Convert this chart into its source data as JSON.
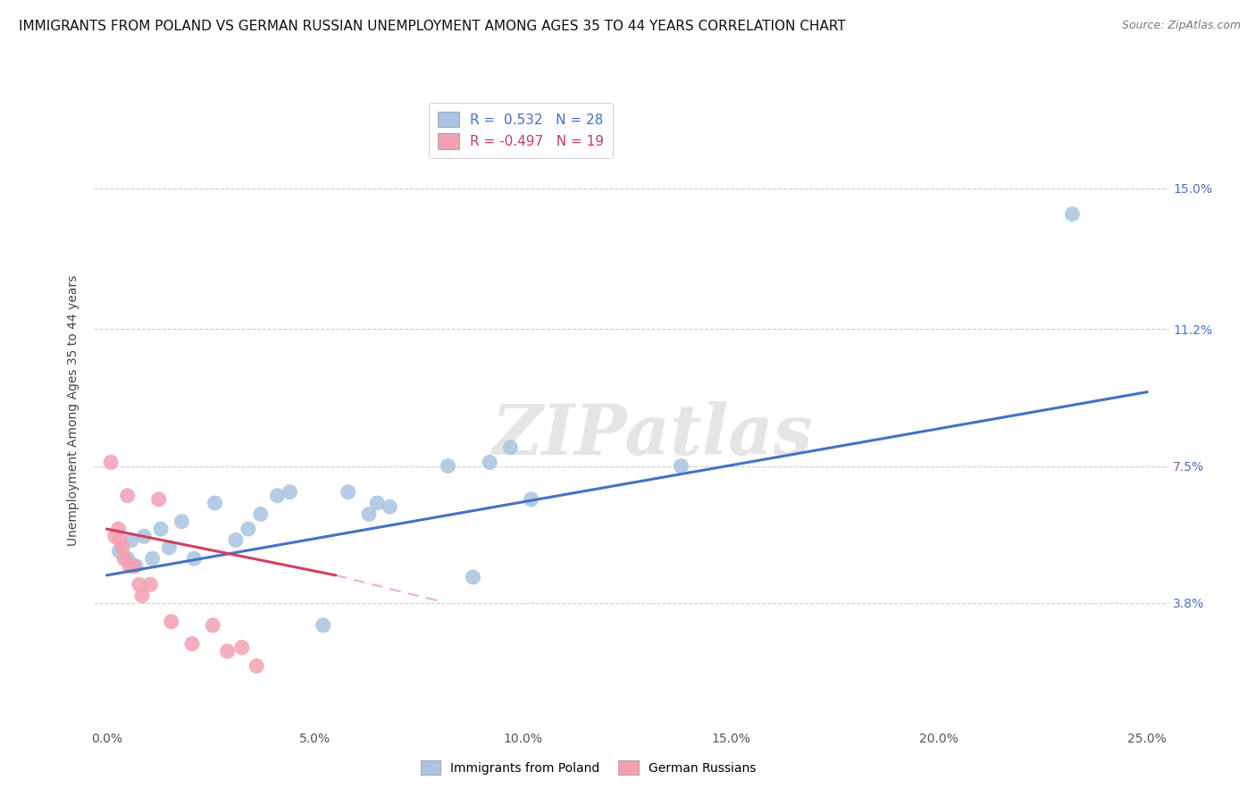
{
  "title": "IMMIGRANTS FROM POLAND VS GERMAN RUSSIAN UNEMPLOYMENT AMONG AGES 35 TO 44 YEARS CORRELATION CHART",
  "source": "Source: ZipAtlas.com",
  "ylabel": "Unemployment Among Ages 35 to 44 years",
  "x_tick_vals": [
    0.0,
    5.0,
    10.0,
    15.0,
    20.0,
    25.0
  ],
  "x_tick_labels": [
    "0.0%",
    "5.0%",
    "10.0%",
    "15.0%",
    "20.0%",
    "25.0%"
  ],
  "y_tick_vals_right": [
    3.8,
    7.5,
    11.2,
    15.0
  ],
  "y_tick_labels_right": [
    "3.8%",
    "7.5%",
    "11.2%",
    "15.0%"
  ],
  "xlim": [
    -0.3,
    25.5
  ],
  "ylim": [
    0.5,
    17.5
  ],
  "legend_r_labels": [
    "R =  0.532   N = 28",
    "R = -0.497   N = 19"
  ],
  "legend_bottom_labels": [
    "Immigrants from Poland",
    "German Russians"
  ],
  "poland_scatter": [
    [
      0.3,
      5.2
    ],
    [
      0.5,
      5.0
    ],
    [
      0.6,
      5.5
    ],
    [
      0.7,
      4.8
    ],
    [
      0.9,
      5.6
    ],
    [
      1.1,
      5.0
    ],
    [
      1.3,
      5.8
    ],
    [
      1.5,
      5.3
    ],
    [
      1.8,
      6.0
    ],
    [
      2.1,
      5.0
    ],
    [
      2.6,
      6.5
    ],
    [
      3.1,
      5.5
    ],
    [
      3.4,
      5.8
    ],
    [
      3.7,
      6.2
    ],
    [
      4.1,
      6.7
    ],
    [
      4.4,
      6.8
    ],
    [
      5.2,
      3.2
    ],
    [
      5.8,
      6.8
    ],
    [
      6.3,
      6.2
    ],
    [
      6.5,
      6.5
    ],
    [
      6.8,
      6.4
    ],
    [
      8.2,
      7.5
    ],
    [
      8.8,
      4.5
    ],
    [
      9.2,
      7.6
    ],
    [
      9.7,
      8.0
    ],
    [
      10.2,
      6.6
    ],
    [
      13.8,
      7.5
    ],
    [
      23.2,
      14.3
    ]
  ],
  "german_russian_scatter": [
    [
      0.1,
      7.6
    ],
    [
      0.2,
      5.6
    ],
    [
      0.28,
      5.8
    ],
    [
      0.32,
      5.5
    ],
    [
      0.38,
      5.3
    ],
    [
      0.42,
      5.0
    ],
    [
      0.5,
      6.7
    ],
    [
      0.55,
      4.8
    ],
    [
      0.65,
      4.8
    ],
    [
      0.78,
      4.3
    ],
    [
      0.85,
      4.0
    ],
    [
      1.05,
      4.3
    ],
    [
      1.25,
      6.6
    ],
    [
      1.55,
      3.3
    ],
    [
      2.05,
      2.7
    ],
    [
      2.55,
      3.2
    ],
    [
      2.9,
      2.5
    ],
    [
      3.25,
      2.6
    ],
    [
      3.6,
      2.1
    ]
  ],
  "blue_line": {
    "x0": 0.0,
    "y0": 4.55,
    "x1": 25.0,
    "y1": 9.5
  },
  "pink_line": {
    "x0": 0.0,
    "y0": 5.8,
    "x1": 5.5,
    "y1": 4.55
  },
  "pink_line_ext": {
    "x0": 5.5,
    "y1": 4.55,
    "x1": 8.0,
    "y2": 3.85
  },
  "scatter_color_blue": "#a8c4e0",
  "scatter_color_pink": "#f4a0b0",
  "line_color_blue": "#4472c4",
  "line_color_pink": "#d04060",
  "background_color": "#ffffff",
  "grid_color": "#cccccc",
  "title_fontsize": 11,
  "tick_fontsize": 10,
  "watermark": "ZIPatlas",
  "watermark_color": "#e5e5e5"
}
